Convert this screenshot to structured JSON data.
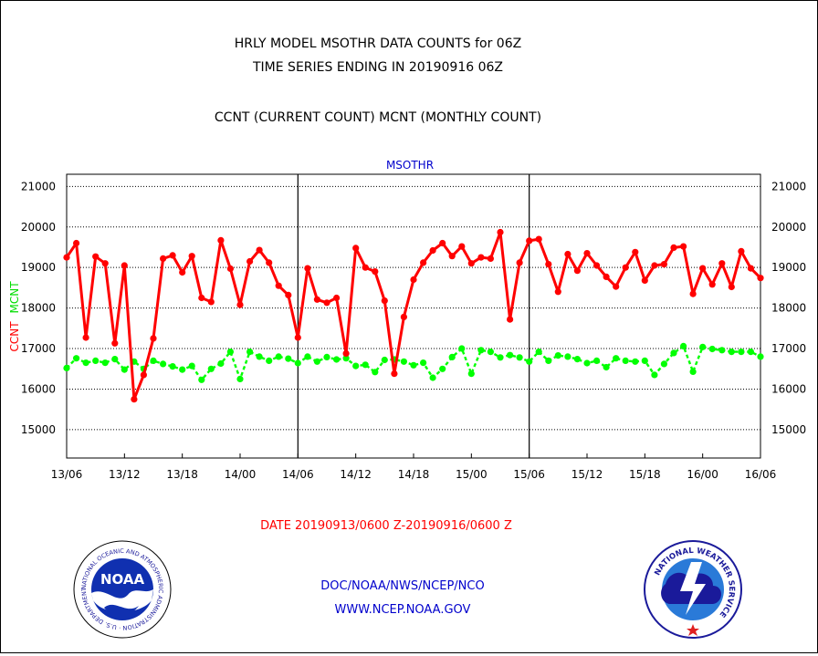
{
  "header": {
    "title_line1": "HRLY MODEL MSOTHR DATA COUNTS for 06Z",
    "title_line2": "TIME SERIES ENDING IN 20190916 06Z",
    "subtitle": "CCNT (CURRENT COUNT) MCNT (MONTHLY COUNT)"
  },
  "footer": {
    "date_range": "DATE 20190913/0600 Z-20190916/0600 Z",
    "agency": "DOC/NOAA/NWS/NCEP/NCO",
    "website": "WWW.NCEP.NOAA.GOV",
    "noaa_logo_text": "NOAA",
    "noaa_ring_text": "NATIONAL OCEANIC AND ATMOSPHERIC ADMINISTRATION · U.S. DEPARTMENT OF COMMERCE ·",
    "nws_ring_text": "NATIONAL WEATHER SERVICE"
  },
  "colors": {
    "ccnt": "#ff0000",
    "mcnt": "#00ff00",
    "plot_label": "#0000cc",
    "footer_link": "#0000cc",
    "date_text": "#ff0000"
  },
  "chart_data": {
    "type": "line",
    "plot_label": "MSOTHR",
    "ylabel_ccnt": "CCNT",
    "ylabel_mcnt": "MCNT",
    "ylim": [
      14300,
      21300
    ],
    "yticks": [
      15000,
      16000,
      17000,
      18000,
      19000,
      20000,
      21000
    ],
    "ytick_labels": [
      "15000",
      "16000",
      "17000",
      "18000",
      "19000",
      "20000",
      "21000"
    ],
    "xlim": [
      0,
      72
    ],
    "xtick_hours": [
      0,
      6,
      12,
      18,
      24,
      30,
      36,
      42,
      48,
      54,
      60,
      66,
      72
    ],
    "xtick_labels": [
      "13/06",
      "13/12",
      "13/18",
      "14/00",
      "14/06",
      "14/12",
      "14/18",
      "15/00",
      "15/06",
      "15/12",
      "15/18",
      "16/00",
      "16/06"
    ],
    "day_dividers": [
      24,
      48
    ],
    "grid": "horizontal dotted",
    "x_hours": [
      0,
      1,
      2,
      3,
      4,
      5,
      6,
      7,
      8,
      9,
      10,
      11,
      12,
      13,
      14,
      15,
      16,
      17,
      18,
      19,
      20,
      21,
      22,
      23,
      24,
      25,
      26,
      27,
      28,
      29,
      30,
      31,
      32,
      33,
      34,
      35,
      36,
      37,
      38,
      39,
      40,
      41,
      42,
      43,
      44,
      45,
      46,
      47,
      48,
      49,
      50,
      51,
      52,
      53,
      54,
      55,
      56,
      57,
      58,
      59,
      60,
      61,
      62,
      63,
      64,
      65,
      66,
      67,
      68,
      69,
      70,
      71,
      72
    ],
    "series": [
      {
        "name": "CCNT",
        "values": [
          19250,
          19600,
          17270,
          19270,
          19100,
          17130,
          19050,
          15750,
          16350,
          17250,
          19220,
          19300,
          18880,
          19280,
          18250,
          18150,
          19670,
          18970,
          18080,
          19150,
          19430,
          19120,
          18550,
          18320,
          17270,
          18980,
          18210,
          18130,
          18250,
          16880,
          19480,
          19000,
          18900,
          18180,
          16380,
          17780,
          18700,
          19120,
          19420,
          19600,
          19280,
          19520,
          19100,
          19250,
          19220,
          19870,
          17720,
          19120,
          19660,
          19700,
          19080,
          18400,
          19330,
          18920,
          19350,
          19050,
          18770,
          18530,
          19000,
          19380,
          18680,
          19050,
          19080,
          19490,
          19520,
          18350,
          18980,
          18580,
          19100,
          18520,
          19400,
          18980,
          18740
        ]
      },
      {
        "name": "MCNT",
        "values": [
          16520,
          16760,
          16650,
          16700,
          16650,
          16740,
          16480,
          16680,
          16500,
          16700,
          16620,
          16560,
          16480,
          16570,
          16230,
          16500,
          16630,
          16920,
          16250,
          16920,
          16800,
          16700,
          16800,
          16750,
          16640,
          16800,
          16680,
          16790,
          16730,
          16760,
          16570,
          16600,
          16420,
          16720,
          16730,
          16680,
          16590,
          16650,
          16280,
          16500,
          16790,
          17000,
          16380,
          16960,
          16920,
          16780,
          16840,
          16780,
          16680,
          16920,
          16700,
          16830,
          16800,
          16740,
          16640,
          16700,
          16540,
          16760,
          16700,
          16680,
          16700,
          16350,
          16620,
          16890,
          17060,
          16430,
          17040,
          16990,
          16960,
          16920,
          16920,
          16920,
          16800
        ]
      }
    ]
  }
}
